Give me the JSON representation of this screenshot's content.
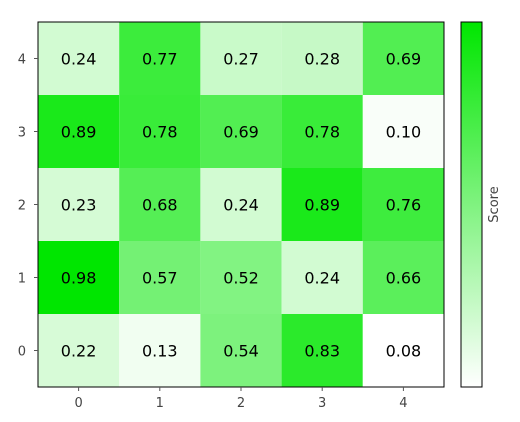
{
  "chart_data": {
    "type": "heatmap",
    "x_categories": [
      "0",
      "1",
      "2",
      "3",
      "4"
    ],
    "y_categories": [
      "0",
      "1",
      "2",
      "3",
      "4"
    ],
    "values": [
      [
        0.22,
        0.13,
        0.54,
        0.83,
        0.08
      ],
      [
        0.98,
        0.57,
        0.52,
        0.24,
        0.66
      ],
      [
        0.23,
        0.68,
        0.24,
        0.89,
        0.76
      ],
      [
        0.89,
        0.78,
        0.69,
        0.78,
        0.1
      ],
      [
        0.24,
        0.77,
        0.27,
        0.28,
        0.69
      ]
    ],
    "colorbar_label": "Score",
    "colormap": {
      "low": "#ffffff",
      "high": "#00e600"
    },
    "vmin": 0.08,
    "vmax": 0.98
  }
}
